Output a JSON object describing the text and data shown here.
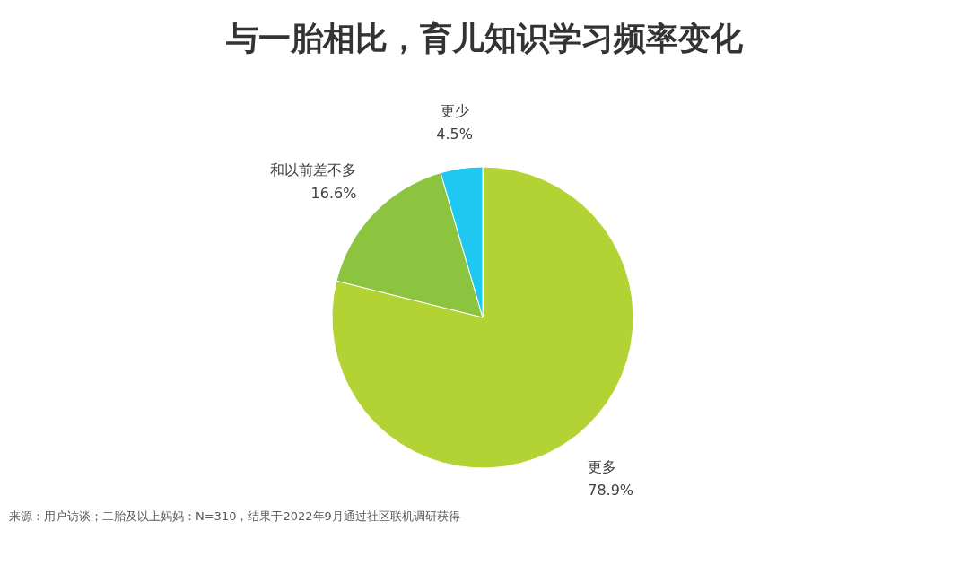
{
  "chart_data": {
    "type": "pie",
    "title": "与一胎相比，育儿知识学习频率变化",
    "categories": [
      "更多",
      "和以前差不多",
      "更少"
    ],
    "values": [
      78.9,
      16.6,
      4.5
    ],
    "colors": [
      "#b3d334",
      "#8cc43f",
      "#1fc8f0"
    ],
    "value_labels": [
      "78.9%",
      "16.6%",
      "4.5%"
    ],
    "annotations": [
      "来源：用户访谈；二胎及以上妈妈：N=310，结果于2022年9月通过社区联机调研获得"
    ]
  }
}
